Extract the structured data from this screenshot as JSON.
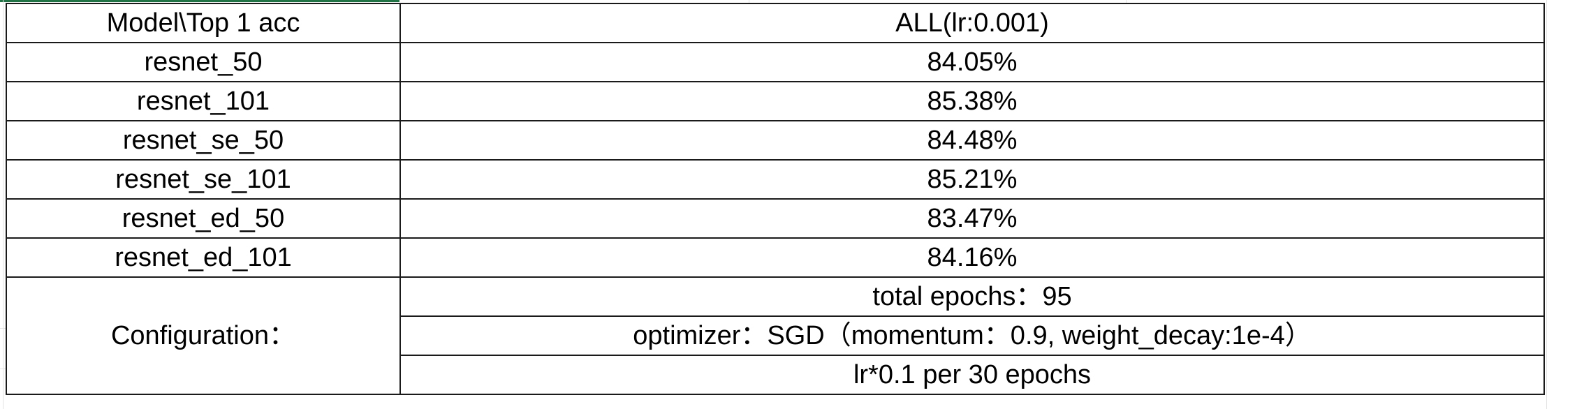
{
  "table": {
    "header": {
      "model_col": "Model\\Top 1 acc",
      "value_col": "ALL(lr:0.001)"
    },
    "rows": [
      {
        "model": "resnet_50",
        "acc": "84.05%"
      },
      {
        "model": "resnet_101",
        "acc": "85.38%"
      },
      {
        "model": "resnet_se_50",
        "acc": "84.48%"
      },
      {
        "model": "resnet_se_101",
        "acc": "85.21%"
      },
      {
        "model": "resnet_ed_50",
        "acc": "83.47%"
      },
      {
        "model": "resnet_ed_101",
        "acc": "84.16%"
      }
    ],
    "configuration": {
      "label": "Configuration：",
      "lines": [
        "total epochs：95",
        "optimizer：SGD（momentum：0.9,   weight_decay:1e-4）",
        "lr*0.1 per 30 epochs"
      ]
    }
  },
  "colors": {
    "border": "#1a1a1a",
    "gridline": "#e3e3e3",
    "selection": "#217346"
  }
}
